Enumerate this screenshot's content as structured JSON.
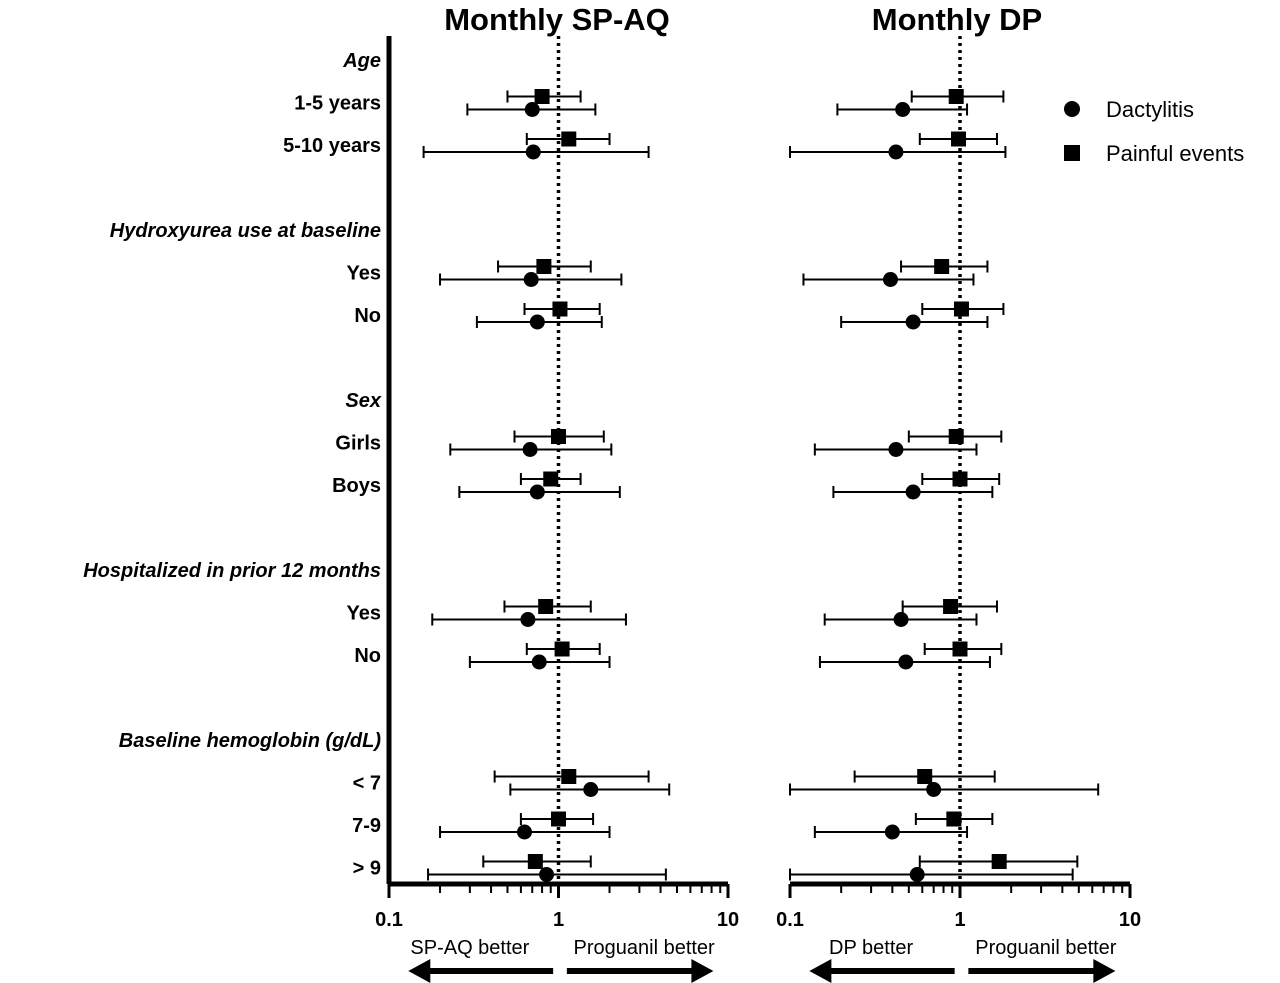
{
  "chart_data": {
    "type": "forest",
    "x_scale": "log",
    "xlim": [
      0.1,
      10
    ],
    "x_ticks": [
      "0.1",
      "1",
      "10"
    ],
    "reference_line": 1,
    "legend": [
      {
        "name": "Dactylitis",
        "marker": "circle"
      },
      {
        "name": "Painful events",
        "marker": "square"
      }
    ],
    "rows": [
      {
        "label": "Age",
        "header": true
      },
      {
        "label": "1-5 years"
      },
      {
        "label": "5-10 years"
      },
      {
        "label": "",
        "spacer": true
      },
      {
        "label": "Hydroxyurea use at baseline",
        "header": true
      },
      {
        "label": "Yes"
      },
      {
        "label": "No"
      },
      {
        "label": "",
        "spacer": true
      },
      {
        "label": "Sex",
        "header": true
      },
      {
        "label": "Girls"
      },
      {
        "label": "Boys"
      },
      {
        "label": "",
        "spacer": true
      },
      {
        "label": "Hospitalized in prior 12 months",
        "header": true
      },
      {
        "label": "Yes"
      },
      {
        "label": "No"
      },
      {
        "label": "",
        "spacer": true
      },
      {
        "label": "Baseline hemoglobin (g/dL)",
        "header": true
      },
      {
        "label": "< 7"
      },
      {
        "label": "7-9"
      },
      {
        "label": "> 9"
      }
    ],
    "panels": [
      {
        "title": "Monthly SP-AQ",
        "left_note": "SP-AQ better",
        "right_note": "Proguanil better",
        "series": [
          {
            "name": "Painful events",
            "points": [
              {
                "row": 1,
                "est": 0.8,
                "lo": 0.5,
                "hi": 1.35
              },
              {
                "row": 2,
                "est": 1.15,
                "lo": 0.65,
                "hi": 2.0
              },
              {
                "row": 5,
                "est": 0.82,
                "lo": 0.44,
                "hi": 1.55
              },
              {
                "row": 6,
                "est": 1.02,
                "lo": 0.63,
                "hi": 1.75
              },
              {
                "row": 9,
                "est": 1.0,
                "lo": 0.55,
                "hi": 1.85
              },
              {
                "row": 10,
                "est": 0.9,
                "lo": 0.6,
                "hi": 1.35
              },
              {
                "row": 13,
                "est": 0.84,
                "lo": 0.48,
                "hi": 1.55
              },
              {
                "row": 14,
                "est": 1.05,
                "lo": 0.65,
                "hi": 1.75
              },
              {
                "row": 17,
                "est": 1.15,
                "lo": 0.42,
                "hi": 3.4
              },
              {
                "row": 18,
                "est": 1.0,
                "lo": 0.6,
                "hi": 1.6
              },
              {
                "row": 19,
                "est": 0.73,
                "lo": 0.36,
                "hi": 1.55
              }
            ]
          },
          {
            "name": "Dactylitis",
            "points": [
              {
                "row": 1,
                "est": 0.7,
                "lo": 0.29,
                "hi": 1.65
              },
              {
                "row": 2,
                "est": 0.71,
                "lo": 0.16,
                "hi": 3.4
              },
              {
                "row": 5,
                "est": 0.69,
                "lo": 0.2,
                "hi": 2.35
              },
              {
                "row": 6,
                "est": 0.75,
                "lo": 0.33,
                "hi": 1.8
              },
              {
                "row": 9,
                "est": 0.68,
                "lo": 0.23,
                "hi": 2.05
              },
              {
                "row": 10,
                "est": 0.75,
                "lo": 0.26,
                "hi": 2.3
              },
              {
                "row": 13,
                "est": 0.66,
                "lo": 0.18,
                "hi": 2.5
              },
              {
                "row": 14,
                "est": 0.77,
                "lo": 0.3,
                "hi": 2.0
              },
              {
                "row": 17,
                "est": 1.55,
                "lo": 0.52,
                "hi": 4.5
              },
              {
                "row": 18,
                "est": 0.63,
                "lo": 0.2,
                "hi": 2.0
              },
              {
                "row": 19,
                "est": 0.85,
                "lo": 0.17,
                "hi": 4.3
              }
            ]
          }
        ]
      },
      {
        "title": "Monthly DP",
        "left_note": "DP better",
        "right_note": "Proguanil better",
        "series": [
          {
            "name": "Painful events",
            "points": [
              {
                "row": 1,
                "est": 0.95,
                "lo": 0.52,
                "hi": 1.8
              },
              {
                "row": 2,
                "est": 0.98,
                "lo": 0.58,
                "hi": 1.65
              },
              {
                "row": 5,
                "est": 0.78,
                "lo": 0.45,
                "hi": 1.45
              },
              {
                "row": 6,
                "est": 1.02,
                "lo": 0.6,
                "hi": 1.8
              },
              {
                "row": 9,
                "est": 0.95,
                "lo": 0.5,
                "hi": 1.75
              },
              {
                "row": 10,
                "est": 1.0,
                "lo": 0.6,
                "hi": 1.7
              },
              {
                "row": 13,
                "est": 0.88,
                "lo": 0.46,
                "hi": 1.65
              },
              {
                "row": 14,
                "est": 1.0,
                "lo": 0.62,
                "hi": 1.75
              },
              {
                "row": 17,
                "est": 0.62,
                "lo": 0.24,
                "hi": 1.6
              },
              {
                "row": 18,
                "est": 0.92,
                "lo": 0.55,
                "hi": 1.55
              },
              {
                "row": 19,
                "est": 1.7,
                "lo": 0.58,
                "hi": 4.9
              }
            ]
          },
          {
            "name": "Dactylitis",
            "points": [
              {
                "row": 1,
                "est": 0.46,
                "lo": 0.19,
                "hi": 1.1
              },
              {
                "row": 2,
                "est": 0.42,
                "lo": 0.1,
                "hi": 1.85
              },
              {
                "row": 5,
                "est": 0.39,
                "lo": 0.12,
                "hi": 1.2
              },
              {
                "row": 6,
                "est": 0.53,
                "lo": 0.2,
                "hi": 1.45
              },
              {
                "row": 9,
                "est": 0.42,
                "lo": 0.14,
                "hi": 1.25
              },
              {
                "row": 10,
                "est": 0.53,
                "lo": 0.18,
                "hi": 1.55
              },
              {
                "row": 13,
                "est": 0.45,
                "lo": 0.16,
                "hi": 1.25
              },
              {
                "row": 14,
                "est": 0.48,
                "lo": 0.15,
                "hi": 1.5
              },
              {
                "row": 17,
                "est": 0.7,
                "lo": 0.1,
                "hi": 6.5
              },
              {
                "row": 18,
                "est": 0.4,
                "lo": 0.14,
                "hi": 1.1
              },
              {
                "row": 19,
                "est": 0.56,
                "lo": 0.1,
                "hi": 4.6
              }
            ]
          }
        ]
      }
    ]
  }
}
